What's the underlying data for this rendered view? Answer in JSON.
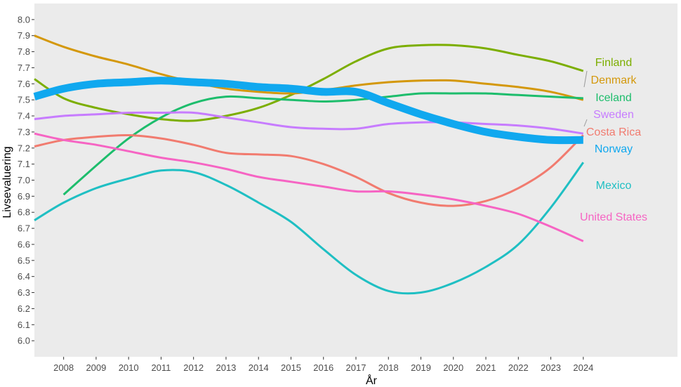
{
  "chart_data": {
    "type": "line",
    "xlabel": "År",
    "ylabel": "Livsevaluering",
    "x": [
      2007,
      2008,
      2009,
      2010,
      2011,
      2012,
      2013,
      2014,
      2015,
      2016,
      2017,
      2018,
      2019,
      2020,
      2021,
      2022,
      2023,
      2024
    ],
    "xlim": [
      2007.1,
      2026.9
    ],
    "ylim": [
      5.9,
      8.1
    ],
    "x_ticks": [
      "2008",
      "2009",
      "2010",
      "2011",
      "2012",
      "2013",
      "2014",
      "2015",
      "2016",
      "2017",
      "2018",
      "2019",
      "2020",
      "2021",
      "2022",
      "2023",
      "2024"
    ],
    "y_ticks": [
      "6.0",
      "6.1",
      "6.2",
      "6.3",
      "6.4",
      "6.5",
      "6.6",
      "6.7",
      "6.8",
      "6.9",
      "7.0",
      "7.1",
      "7.2",
      "7.3",
      "7.4",
      "7.5",
      "7.6",
      "7.7",
      "7.8",
      "7.9",
      "8.0"
    ],
    "grid": false,
    "background": "#ebebeb",
    "legend": "none",
    "series": [
      {
        "name": "Finland",
        "color": "#7cae00",
        "highlight": false,
        "values": [
          7.63,
          7.51,
          7.45,
          7.41,
          7.38,
          7.37,
          7.4,
          7.45,
          7.53,
          7.63,
          7.74,
          7.82,
          7.84,
          7.84,
          7.82,
          7.78,
          7.74,
          7.68
        ]
      },
      {
        "name": "Denmark",
        "color": "#d4980b",
        "highlight": false,
        "values": [
          7.9,
          7.83,
          7.77,
          7.72,
          7.66,
          7.61,
          7.57,
          7.55,
          7.54,
          7.56,
          7.59,
          7.61,
          7.62,
          7.62,
          7.6,
          7.58,
          7.55,
          7.5
        ]
      },
      {
        "name": "Iceland",
        "color": "#1dbd6c",
        "highlight": false,
        "values": [
          null,
          6.91,
          7.09,
          7.26,
          7.39,
          7.48,
          7.52,
          7.51,
          7.5,
          7.49,
          7.5,
          7.52,
          7.54,
          7.54,
          7.54,
          7.53,
          7.52,
          7.51
        ]
      },
      {
        "name": "Sweden",
        "color": "#c77cff",
        "highlight": false,
        "values": [
          7.38,
          7.4,
          7.41,
          7.42,
          7.42,
          7.42,
          7.39,
          7.36,
          7.33,
          7.32,
          7.32,
          7.35,
          7.36,
          7.36,
          7.35,
          7.34,
          7.32,
          7.29
        ]
      },
      {
        "name": "Costa Rica",
        "color": "#f17b6f",
        "highlight": false,
        "values": [
          7.21,
          7.25,
          7.27,
          7.28,
          7.26,
          7.22,
          7.17,
          7.16,
          7.15,
          7.1,
          7.02,
          6.92,
          6.86,
          6.84,
          6.87,
          6.95,
          7.08,
          7.28
        ]
      },
      {
        "name": "Norway",
        "color": "#10a8ef",
        "highlight": true,
        "values": [
          7.52,
          7.57,
          7.6,
          7.61,
          7.62,
          7.61,
          7.6,
          7.58,
          7.57,
          7.55,
          7.55,
          7.48,
          7.41,
          7.35,
          7.3,
          7.27,
          7.25,
          7.25
        ]
      },
      {
        "name": "Mexico",
        "color": "#1fbfc3",
        "highlight": false,
        "values": [
          6.75,
          6.86,
          6.95,
          7.01,
          7.06,
          7.05,
          6.97,
          6.86,
          6.74,
          6.57,
          6.41,
          6.31,
          6.3,
          6.36,
          6.46,
          6.6,
          6.83,
          7.11
        ]
      },
      {
        "name": "United States",
        "color": "#f664c3",
        "highlight": false,
        "values": [
          7.29,
          7.25,
          7.22,
          7.18,
          7.14,
          7.11,
          7.07,
          7.02,
          6.99,
          6.96,
          6.93,
          6.93,
          6.91,
          6.88,
          6.84,
          6.79,
          6.71,
          6.62
        ]
      }
    ],
    "series_labels": [
      {
        "text": "Finland",
        "color": "#7cae00"
      },
      {
        "text": "Denmark",
        "color": "#d4980b"
      },
      {
        "text": "Iceland",
        "color": "#1dbd6c"
      },
      {
        "text": "Sweden",
        "color": "#c77cff"
      },
      {
        "text": "Costa Rica",
        "color": "#f17b6f"
      },
      {
        "text": "Norway",
        "color": "#10a8ef"
      },
      {
        "text": "Mexico",
        "color": "#1fbfc3"
      },
      {
        "text": "United States",
        "color": "#f664c3"
      }
    ]
  }
}
